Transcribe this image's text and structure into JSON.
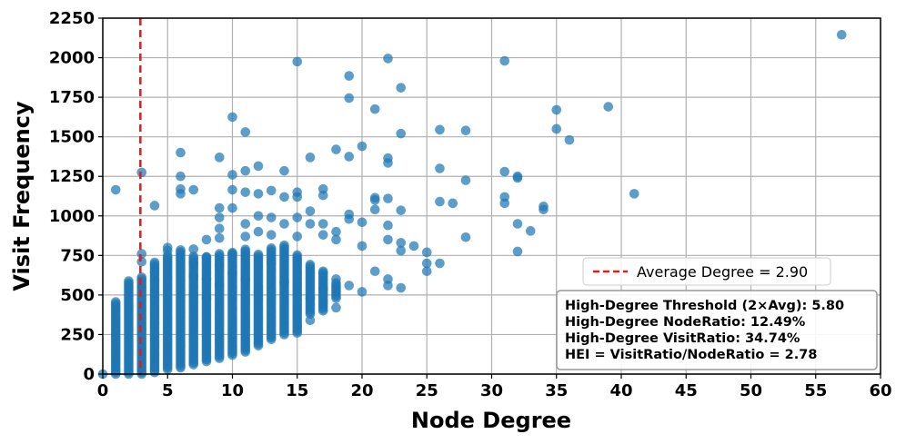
{
  "chart_data": {
    "type": "scatter",
    "xlabel": "Node Degree",
    "ylabel": "Visit Frequency",
    "xlim": [
      0,
      60
    ],
    "ylim": [
      0,
      2250
    ],
    "xticks": [
      "0",
      "5",
      "10",
      "15",
      "20",
      "25",
      "30",
      "35",
      "40",
      "45",
      "50",
      "55",
      "60"
    ],
    "yticks": [
      "0",
      "250",
      "500",
      "750",
      "1000",
      "1250",
      "1500",
      "1750",
      "2000",
      "2250"
    ],
    "grid": true,
    "point_color": "#1f77b4",
    "average_line": {
      "x": 2.9,
      "color": "#e41a1c",
      "label": "Average Degree = 2.90"
    },
    "legend_position": "lower-right",
    "stats": [
      "High-Degree Threshold (2×Avg): 5.80",
      "High-Degree  NodeRatio: 12.49%",
      "High-Degree  VisitRatio: 34.74%",
      "HEI = VisitRatio/NodeRatio = 2.78"
    ],
    "points": [
      [
        0,
        0
      ],
      [
        1,
        1165
      ],
      [
        3,
        1275
      ],
      [
        3,
        760
      ],
      [
        3,
        710
      ],
      [
        4,
        1065
      ],
      [
        5,
        800
      ],
      [
        5,
        780
      ],
      [
        6,
        1400
      ],
      [
        6,
        1250
      ],
      [
        6,
        1170
      ],
      [
        6,
        1140
      ],
      [
        7,
        1165
      ],
      [
        7,
        790
      ],
      [
        9,
        1370
      ],
      [
        9,
        1050
      ],
      [
        9,
        990
      ],
      [
        9,
        920
      ],
      [
        10,
        1625
      ],
      [
        10,
        1260
      ],
      [
        10,
        1165
      ],
      [
        10,
        1050
      ],
      [
        11,
        1530
      ],
      [
        11,
        1285
      ],
      [
        11,
        1150
      ],
      [
        11,
        950
      ],
      [
        12,
        1315
      ],
      [
        12,
        1140
      ],
      [
        12,
        1000
      ],
      [
        13,
        1160
      ],
      [
        13,
        990
      ],
      [
        14,
        1285
      ],
      [
        14,
        1120
      ],
      [
        14,
        950
      ],
      [
        15,
        1975
      ],
      [
        15,
        1150
      ],
      [
        15,
        1120
      ],
      [
        15,
        990
      ],
      [
        16,
        1370
      ],
      [
        16,
        1030
      ],
      [
        17,
        1170
      ],
      [
        17,
        1130
      ],
      [
        17,
        950
      ],
      [
        18,
        1420
      ],
      [
        18,
        900
      ],
      [
        19,
        1885
      ],
      [
        19,
        1745
      ],
      [
        19,
        1375
      ],
      [
        19,
        1010
      ],
      [
        19,
        980
      ],
      [
        20,
        1440
      ],
      [
        20,
        960
      ],
      [
        21,
        1675
      ],
      [
        21,
        1115
      ],
      [
        21,
        1100
      ],
      [
        21,
        1040
      ],
      [
        22,
        1995
      ],
      [
        22,
        1365
      ],
      [
        22,
        1335
      ],
      [
        22,
        1110
      ],
      [
        22,
        940
      ],
      [
        22,
        850
      ],
      [
        23,
        1810
      ],
      [
        23,
        1520
      ],
      [
        23,
        1035
      ],
      [
        23,
        830
      ],
      [
        23,
        545
      ],
      [
        24,
        810
      ],
      [
        25,
        770
      ],
      [
        25,
        700
      ],
      [
        25,
        650
      ],
      [
        26,
        1545
      ],
      [
        26,
        1300
      ],
      [
        26,
        1090
      ],
      [
        26,
        700
      ],
      [
        27,
        1080
      ],
      [
        28,
        1540
      ],
      [
        28,
        1225
      ],
      [
        28,
        865
      ],
      [
        31,
        1980
      ],
      [
        31,
        1280
      ],
      [
        31,
        1120
      ],
      [
        31,
        1080
      ],
      [
        32,
        1250
      ],
      [
        32,
        1240
      ],
      [
        32,
        950
      ],
      [
        32,
        775
      ],
      [
        33,
        905
      ],
      [
        34,
        1060
      ],
      [
        34,
        1040
      ],
      [
        35,
        1670
      ],
      [
        35,
        1550
      ],
      [
        36,
        1480
      ],
      [
        39,
        1690
      ],
      [
        41,
        1140
      ],
      [
        57,
        2145
      ],
      [
        7,
        700
      ],
      [
        7,
        620
      ],
      [
        7,
        500
      ],
      [
        8,
        740
      ],
      [
        8,
        600
      ],
      [
        8,
        480
      ],
      [
        9,
        690
      ],
      [
        9,
        560
      ],
      [
        10,
        760
      ],
      [
        10,
        640
      ],
      [
        11,
        600
      ],
      [
        12,
        520
      ],
      [
        13,
        700
      ],
      [
        14,
        580
      ],
      [
        16,
        480
      ],
      [
        16,
        340
      ],
      [
        17,
        650
      ],
      [
        17,
        540
      ],
      [
        18,
        600
      ],
      [
        18,
        420
      ],
      [
        19,
        560
      ],
      [
        20,
        520
      ],
      [
        21,
        650
      ],
      [
        22,
        600
      ],
      [
        22,
        560
      ],
      [
        23,
        780
      ],
      [
        20,
        810
      ],
      [
        18,
        850
      ],
      [
        17,
        880
      ],
      [
        16,
        950
      ],
      [
        15,
        870
      ],
      [
        13,
        880
      ],
      [
        12,
        900
      ],
      [
        11,
        870
      ],
      [
        9,
        860
      ],
      [
        8,
        850
      ]
    ],
    "columns": [
      [
        1,
        0,
        460
      ],
      [
        2,
        0,
        590
      ],
      [
        3,
        0,
        620
      ],
      [
        4,
        10,
        710
      ],
      [
        5,
        30,
        760
      ],
      [
        6,
        40,
        790
      ],
      [
        7,
        60,
        750
      ],
      [
        8,
        80,
        740
      ],
      [
        9,
        100,
        760
      ],
      [
        10,
        120,
        770
      ],
      [
        11,
        140,
        790
      ],
      [
        12,
        180,
        760
      ],
      [
        13,
        220,
        800
      ],
      [
        14,
        250,
        820
      ],
      [
        15,
        260,
        760
      ],
      [
        16,
        380,
        700
      ],
      [
        17,
        400,
        640
      ],
      [
        18,
        480,
        580
      ]
    ]
  }
}
